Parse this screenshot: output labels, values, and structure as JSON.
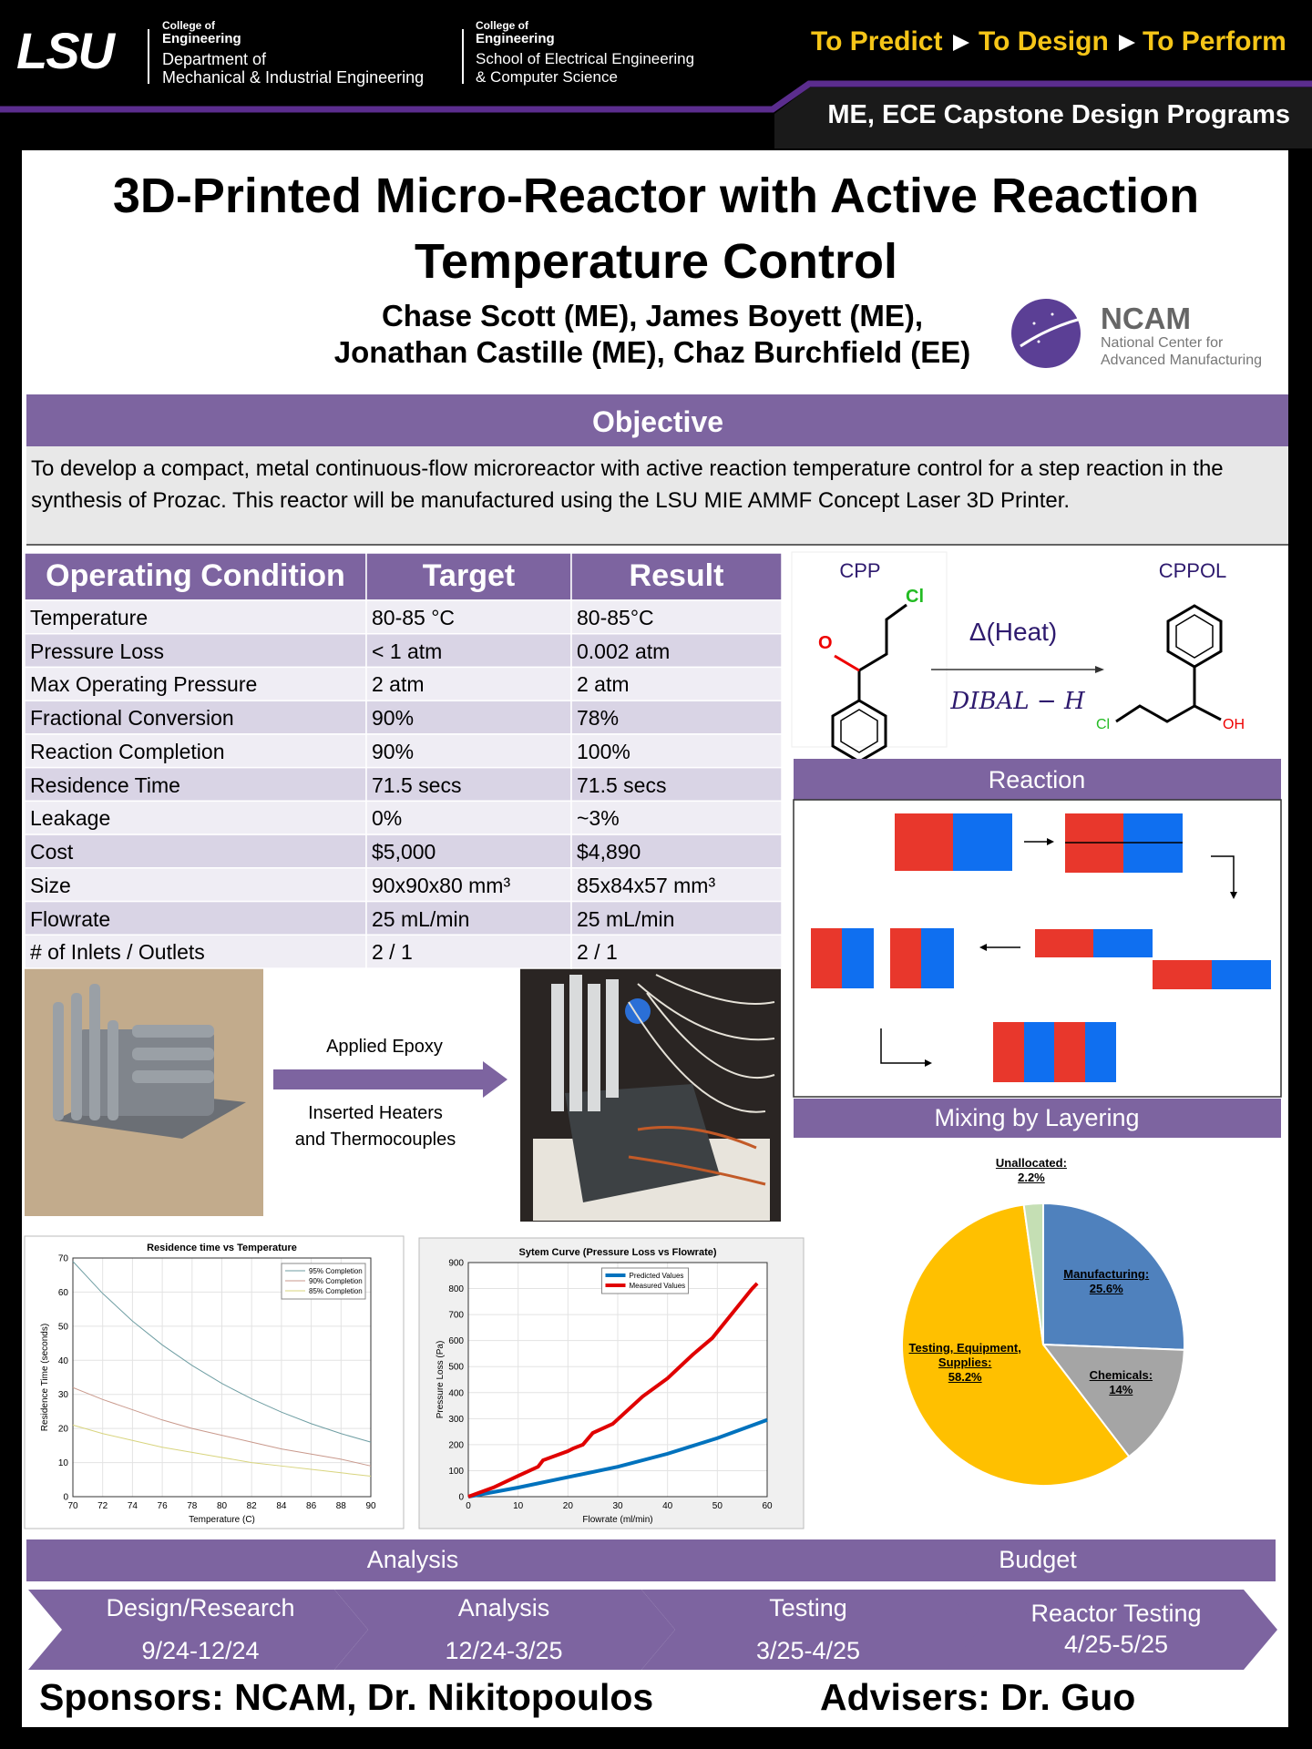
{
  "header": {
    "logo": "LSU",
    "college_1": [
      "College of",
      "Engineering"
    ],
    "department_1": [
      "Department of",
      "Mechanical & Industrial Engineering"
    ],
    "college_2": [
      "College of",
      "Engineering"
    ],
    "department_2": [
      "School of Electrical Engineering",
      "& Computer Science"
    ],
    "tagline": [
      "To Predict",
      "To Design",
      "To Perform"
    ],
    "banner": "ME, ECE Capstone Design Programs"
  },
  "title": [
    "3D-Printed Micro-Reactor with Active Reaction",
    "Temperature Control"
  ],
  "authors": [
    "Chase Scott (ME), James Boyett (ME),",
    "Jonathan Castille (ME), Chaz Burchfield (EE)"
  ],
  "sponsor_logo": {
    "name": "NCAM",
    "subtitle": [
      "National Center for",
      "Advanced Manufacturing"
    ]
  },
  "objective": {
    "heading": "Objective",
    "text": "To develop a compact, metal continuous-flow microreactor with active reaction temperature control for a step reaction in the synthesis of Prozac. This reactor will be manufactured using the LSU MIE AMMF Concept Laser 3D Printer."
  },
  "table": {
    "header": [
      "Operating Condition",
      "Target",
      "Result"
    ],
    "rows": [
      [
        "Temperature",
        "80-85 °C",
        "80-85°C"
      ],
      [
        "Pressure Loss",
        "< 1 atm",
        "0.002 atm"
      ],
      [
        "Max Operating Pressure",
        "2 atm",
        "2 atm"
      ],
      [
        "Fractional Conversion",
        "90%",
        "78%"
      ],
      [
        "Reaction Completion",
        "90%",
        "100%"
      ],
      [
        "Residence Time",
        "71.5 secs",
        "71.5 secs"
      ],
      [
        "Leakage",
        "0%",
        "~3%"
      ],
      [
        "Cost",
        "$5,000",
        "$4,890"
      ],
      [
        "Size",
        "90x90x80 mm³",
        "85x84x57 mm³"
      ],
      [
        "Flowrate",
        "25 mL/min",
        "25 mL/min"
      ],
      [
        "# of Inlets / Outlets",
        "2 / 1",
        "2 / 1"
      ]
    ]
  },
  "reaction": {
    "reactant": "CPP",
    "product": "CPPOL",
    "condition": "Δ(Heat)",
    "reagent": "DIBAL − H",
    "atoms": [
      "Cl",
      "O",
      "Cl",
      "OH"
    ],
    "heading": "Reaction"
  },
  "mixing": {
    "heading": "Mixing by Layering"
  },
  "process": {
    "step_1": "Applied Epoxy",
    "step_2": [
      "Inserted Heaters",
      "and Thermocouples"
    ]
  },
  "chart_data": [
    {
      "type": "line",
      "title": "Residence time vs Temperature",
      "x_label": "Temperature (C)",
      "y_label": "Residence Time (seconds)",
      "x": [
        70,
        72,
        74,
        76,
        78,
        80,
        82,
        84,
        86,
        88,
        90
      ],
      "series": [
        {
          "name": "95% Completion",
          "color": "#6f9ea3",
          "values": [
            69,
            59.6,
            51.5,
            44.5,
            38.5,
            33.2,
            28.7,
            24.8,
            21.4,
            18.5,
            16
          ]
        },
        {
          "name": "90% Completion",
          "color": "#c9998c",
          "values": [
            32,
            28.5,
            25.5,
            22.5,
            20,
            18,
            16,
            14,
            12.5,
            11,
            9
          ]
        },
        {
          "name": "85% Completion",
          "color": "#d8d47e",
          "values": [
            21,
            18.5,
            16.5,
            14.5,
            13,
            11.5,
            10,
            9,
            8,
            7,
            6
          ]
        }
      ],
      "xlim": [
        70,
        90
      ],
      "xticks": [
        70,
        72,
        74,
        76,
        78,
        80,
        82,
        84,
        86,
        88,
        90
      ],
      "ylim": [
        0,
        70
      ],
      "yticks": [
        0,
        10,
        20,
        30,
        40,
        50,
        60,
        70
      ],
      "grid": true,
      "legend": "upper right"
    },
    {
      "type": "line",
      "title": "Sytem Curve (Pressure Loss vs Flowrate)",
      "x_label": "Flowrate (ml/min)",
      "y_label": "Pressure Loss (Pa)",
      "series": [
        {
          "name": "Predicted Values",
          "color": "#0072bd",
          "x": [
            0,
            10,
            20,
            30,
            40,
            50,
            60
          ],
          "values": [
            0,
            35,
            75,
            115,
            165,
            225,
            295
          ]
        },
        {
          "name": "Measured Values",
          "color": "#e00000",
          "x": [
            0,
            5,
            10,
            14,
            15,
            20,
            21,
            23,
            25,
            29,
            35,
            40,
            45,
            49,
            57,
            58
          ],
          "values": [
            0,
            35,
            80,
            115,
            140,
            175,
            185,
            200,
            245,
            280,
            385,
            455,
            545,
            610,
            800,
            820
          ]
        }
      ],
      "xlim": [
        0,
        60
      ],
      "xticks": [
        0,
        10,
        20,
        30,
        40,
        50,
        60
      ],
      "ylim": [
        0,
        900
      ],
      "yticks": [
        0,
        100,
        200,
        300,
        400,
        500,
        600,
        700,
        800,
        900
      ],
      "grid": true,
      "legend": "upper center"
    },
    {
      "type": "pie",
      "categories": [
        "Manufacturing:",
        "Chemicals:",
        "Testing, Equipment, Supplies:",
        "Unallocated:"
      ],
      "values": [
        25.6,
        14,
        58.2,
        2.2
      ],
      "value_labels": [
        "25.6%",
        "14%",
        "58.2%",
        "2.2%"
      ],
      "colors": [
        "#4f81bd",
        "#a5a5a5",
        "#ffc000",
        "#c5dfb4"
      ]
    }
  ],
  "bottom_bar": [
    "Analysis",
    "Budget"
  ],
  "timeline": [
    {
      "phase": "Design/Research",
      "dates": "9/24-12/24"
    },
    {
      "phase": "Analysis",
      "dates": "12/24-3/25"
    },
    {
      "phase": "Testing",
      "dates": "3/25-4/25"
    },
    {
      "phase": "Reactor Testing",
      "dates": "4/25-5/25"
    }
  ],
  "footer": {
    "sponsors": "Sponsors: NCAM, Dr. Nikitopoulos",
    "advisers": "Advisers: Dr. Guo"
  }
}
